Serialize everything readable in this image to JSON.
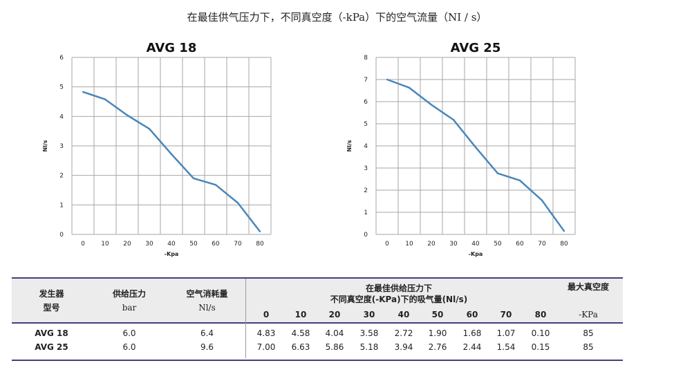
{
  "page_title": "在最佳供气压力下，不同真空度（-kPa）下的空气流量（NI / s）",
  "chart_data": [
    {
      "type": "line",
      "title": "AVG 18",
      "xlabel": "-Kpa",
      "ylabel": "Nl/s",
      "x": [
        0,
        10,
        20,
        30,
        40,
        50,
        60,
        70,
        80
      ],
      "y": [
        4.83,
        4.58,
        4.04,
        3.58,
        2.72,
        1.9,
        1.68,
        1.07,
        0.1
      ],
      "xticks": [
        "0",
        "10",
        "20",
        "30",
        "40",
        "50",
        "60",
        "70",
        "80"
      ],
      "yticks": [
        "0",
        "1",
        "2",
        "3",
        "4",
        "5",
        "6"
      ],
      "ylim": [
        0,
        6
      ],
      "grid": true,
      "line_color": "#4a86b8"
    },
    {
      "type": "line",
      "title": "AVG 25",
      "xlabel": "-Kpa",
      "ylabel": "Nl/s",
      "x": [
        0,
        10,
        20,
        30,
        40,
        50,
        60,
        70,
        80
      ],
      "y": [
        7.0,
        6.63,
        5.86,
        5.18,
        3.94,
        2.76,
        2.44,
        1.54,
        0.15
      ],
      "xticks": [
        "0",
        "10",
        "20",
        "30",
        "40",
        "50",
        "60",
        "70",
        "80"
      ],
      "yticks": [
        "0",
        "1",
        "2",
        "3",
        "4",
        "5",
        "6",
        "7",
        "8"
      ],
      "ylim": [
        0,
        8
      ],
      "grid": true,
      "line_color": "#4a86b8"
    }
  ],
  "table": {
    "h_model_1": "发生器",
    "h_model_2": "型号",
    "h_pressure_1": "供给压力",
    "h_pressure_2": "bar",
    "h_consumption_1": "空气消耗量",
    "h_consumption_2": "Nl/s",
    "h_flow_1": "在最佳供给压力下",
    "h_flow_2": "不同真空度(-KPa)下的吸气量(Nl/s)",
    "h_maxvac_1": "最大真空度",
    "h_maxvac_2": "-KPa",
    "vacuum_levels": [
      "0",
      "10",
      "20",
      "30",
      "40",
      "50",
      "60",
      "70",
      "80"
    ],
    "rows": [
      {
        "model": "AVG 18",
        "pressure": "6.0",
        "consumption": "6.4",
        "flows": [
          "4.83",
          "4.58",
          "4.04",
          "3.58",
          "2.72",
          "1.90",
          "1.68",
          "1.07",
          "0.10"
        ],
        "max_vacuum": "85"
      },
      {
        "model": "AVG 25",
        "pressure": "6.0",
        "consumption": "9.6",
        "flows": [
          "7.00",
          "6.63",
          "5.86",
          "5.18",
          "3.94",
          "2.76",
          "2.44",
          "1.54",
          "0.15"
        ],
        "max_vacuum": "85"
      }
    ]
  }
}
